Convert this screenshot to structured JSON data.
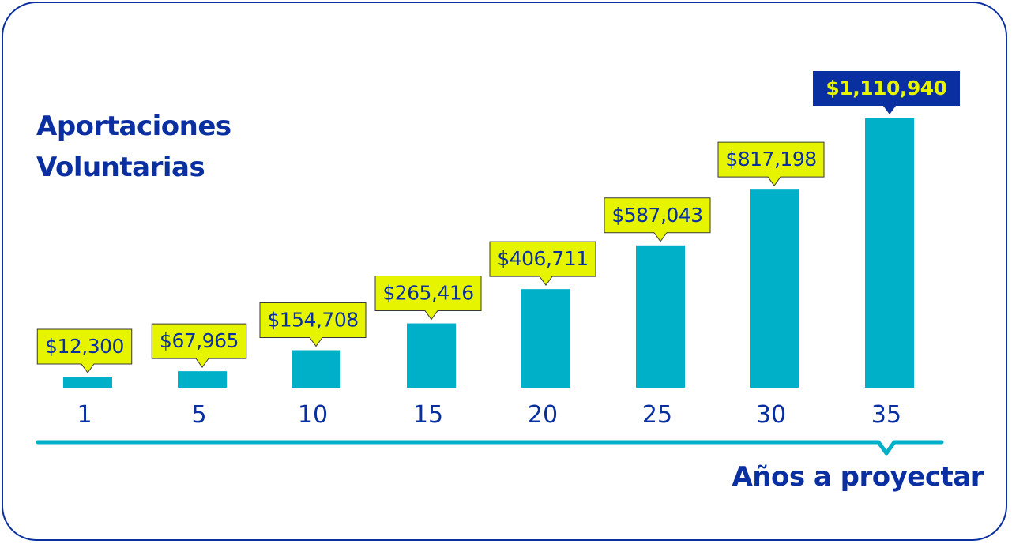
{
  "chart_data": {
    "type": "bar",
    "title": "Aportaciones Voluntarias",
    "title_lines": [
      "Aportaciones",
      "Voluntarias"
    ],
    "xlabel": "Años a proyectar",
    "ylabel": "",
    "categories": [
      "1",
      "5",
      "10",
      "15",
      "20",
      "25",
      "30",
      "35"
    ],
    "values": [
      12300,
      67965,
      154708,
      265416,
      406711,
      587043,
      817198,
      1110940
    ],
    "value_labels": [
      "$12,300",
      "$67,965",
      "$154,708",
      "$265,416",
      "$406,711",
      "$587,043",
      "$817,198",
      "$1,110,940"
    ],
    "ylim": [
      0,
      1110940
    ],
    "grid": false,
    "legend": "none",
    "colors": {
      "bar": "#00b0c8",
      "label_box": "#e6f400",
      "label_box_highlight": "#0a2fa0",
      "text": "#0a2fa0",
      "axis": "#00b0c8",
      "border": "#0a2fa0"
    }
  }
}
